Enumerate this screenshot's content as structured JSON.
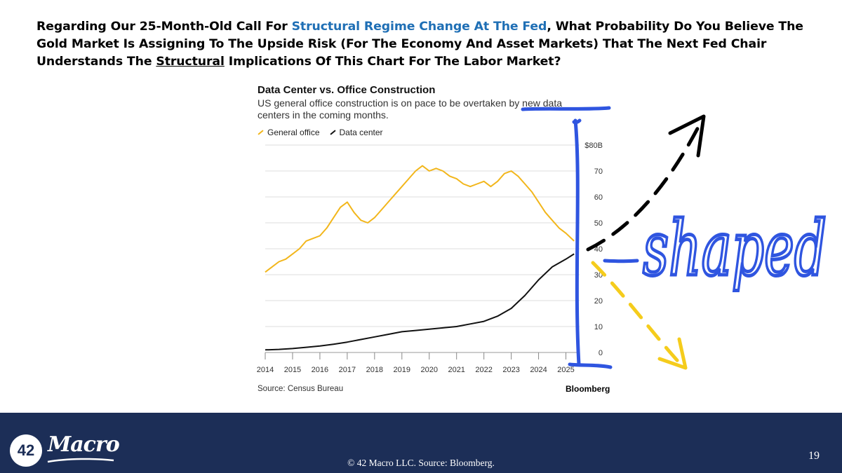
{
  "slide": {
    "headline": {
      "part1": "Regarding Our 25-Month-Old Call For ",
      "highlight": "Structural Regime Change At The Fed",
      "part2": ", What Probability Do You Believe The Gold Market Is Assigning To The Upside Risk (For The Economy And Asset Markets) That The Next Fed Chair Understands The ",
      "underlined": "Structural",
      "part3": " Implications Of This Chart For The Labor Market?"
    },
    "highlight_color": "#1f6fb5",
    "annotation_text": "shaped",
    "footer": {
      "logo_number": "42",
      "logo_word": "Macro",
      "copyright": "© 42 Macro LLC. Source: Bloomberg.",
      "page_number": "19",
      "background_color": "#1c2e57"
    }
  },
  "chart_data": {
    "type": "line",
    "title": "Data Center vs. Office Construction",
    "subtitle": "US general office construction is on pace to be overtaken by new data centers in the coming months.",
    "source": "Source: Census Bureau",
    "brand": "Bloomberg",
    "xlabel": "",
    "ylabel": "",
    "ylim": [
      0,
      80
    ],
    "xlim": [
      2014,
      2025.5
    ],
    "y_ticks": [
      "$80B",
      "70",
      "60",
      "50",
      "40",
      "30",
      "20",
      "10",
      "0"
    ],
    "x_ticks": [
      "2014",
      "2015",
      "2016",
      "2017",
      "2018",
      "2019",
      "2020",
      "2021",
      "2022",
      "2023",
      "2024",
      "2025"
    ],
    "grid": true,
    "legend_position": "top-left",
    "series": [
      {
        "name": "General office",
        "color": "#f2b61b",
        "points": [
          [
            2014.0,
            31
          ],
          [
            2014.25,
            33
          ],
          [
            2014.5,
            35
          ],
          [
            2014.75,
            36
          ],
          [
            2015.0,
            38
          ],
          [
            2015.25,
            40
          ],
          [
            2015.5,
            43
          ],
          [
            2015.75,
            44
          ],
          [
            2016.0,
            45
          ],
          [
            2016.25,
            48
          ],
          [
            2016.5,
            52
          ],
          [
            2016.75,
            56
          ],
          [
            2017.0,
            58
          ],
          [
            2017.25,
            54
          ],
          [
            2017.5,
            51
          ],
          [
            2017.75,
            50
          ],
          [
            2018.0,
            52
          ],
          [
            2018.25,
            55
          ],
          [
            2018.5,
            58
          ],
          [
            2018.75,
            61
          ],
          [
            2019.0,
            64
          ],
          [
            2019.25,
            67
          ],
          [
            2019.5,
            70
          ],
          [
            2019.75,
            72
          ],
          [
            2020.0,
            70
          ],
          [
            2020.25,
            71
          ],
          [
            2020.5,
            70
          ],
          [
            2020.75,
            68
          ],
          [
            2021.0,
            67
          ],
          [
            2021.25,
            65
          ],
          [
            2021.5,
            64
          ],
          [
            2021.75,
            65
          ],
          [
            2022.0,
            66
          ],
          [
            2022.25,
            64
          ],
          [
            2022.5,
            66
          ],
          [
            2022.75,
            69
          ],
          [
            2023.0,
            70
          ],
          [
            2023.25,
            68
          ],
          [
            2023.5,
            65
          ],
          [
            2023.75,
            62
          ],
          [
            2024.0,
            58
          ],
          [
            2024.25,
            54
          ],
          [
            2024.5,
            51
          ],
          [
            2024.75,
            48
          ],
          [
            2025.0,
            46
          ],
          [
            2025.3,
            43
          ]
        ]
      },
      {
        "name": "Data center",
        "color": "#111111",
        "points": [
          [
            2014.0,
            1
          ],
          [
            2014.5,
            1.2
          ],
          [
            2015.0,
            1.5
          ],
          [
            2015.5,
            2
          ],
          [
            2016.0,
            2.5
          ],
          [
            2016.5,
            3.2
          ],
          [
            2017.0,
            4
          ],
          [
            2017.5,
            5
          ],
          [
            2018.0,
            6
          ],
          [
            2018.5,
            7
          ],
          [
            2019.0,
            8
          ],
          [
            2019.5,
            8.5
          ],
          [
            2020.0,
            9
          ],
          [
            2020.5,
            9.5
          ],
          [
            2021.0,
            10
          ],
          [
            2021.5,
            11
          ],
          [
            2022.0,
            12
          ],
          [
            2022.5,
            14
          ],
          [
            2023.0,
            17
          ],
          [
            2023.5,
            22
          ],
          [
            2024.0,
            28
          ],
          [
            2024.5,
            33
          ],
          [
            2025.0,
            36
          ],
          [
            2025.3,
            38
          ]
        ]
      }
    ]
  }
}
